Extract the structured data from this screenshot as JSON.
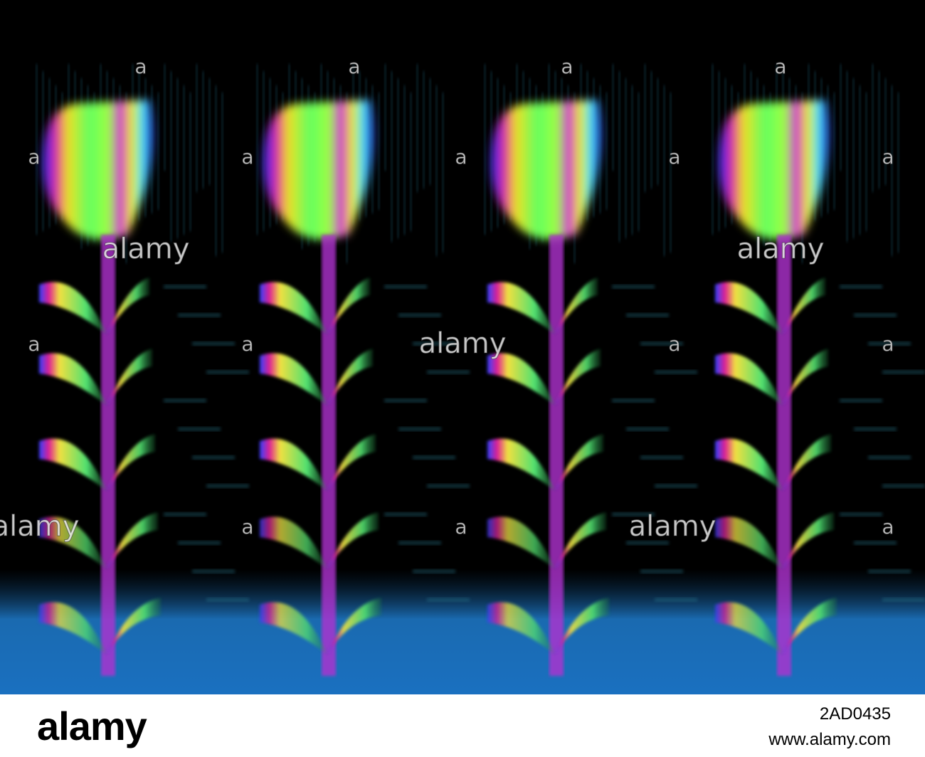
{
  "image": {
    "watermark": "alamy",
    "watermark_mark": "a"
  },
  "footer": {
    "logo": "alamy",
    "image_id": "2AD0435",
    "url": "www.alamy.com"
  }
}
